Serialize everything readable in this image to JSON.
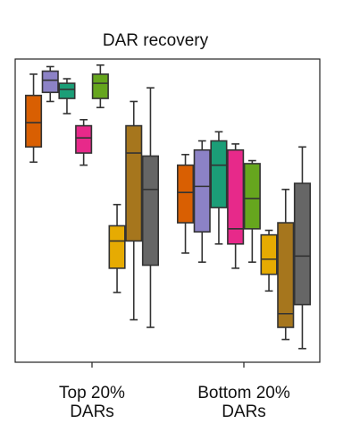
{
  "chart_data": {
    "type": "box",
    "title": "DAR recovery",
    "xlabel": "",
    "ylabel": "",
    "grid": false,
    "categories": [
      {
        "line1": "Top 20%",
        "line2": "DARs"
      },
      {
        "line1": "Bottom 20%",
        "line2": "DARs"
      }
    ],
    "ylim": [
      0,
      10
    ],
    "series": [
      {
        "color": "#d95f02"
      },
      {
        "color": "#8c82c6"
      },
      {
        "color": "#1b9e77"
      },
      {
        "color": "#e7298a"
      },
      {
        "color": "#66a61e"
      },
      {
        "color": "#e6ab02"
      },
      {
        "color": "#a6761d"
      },
      {
        "color": "#666666"
      }
    ],
    "boxes": [
      [
        {
          "whislo": 6.6,
          "q1": 7.1,
          "med": 7.9,
          "q3": 8.8,
          "whishi": 9.5
        },
        {
          "whislo": 8.6,
          "q1": 8.9,
          "med": 9.3,
          "q3": 9.6,
          "whishi": 9.75
        },
        {
          "whislo": 8.2,
          "q1": 8.7,
          "med": 9.0,
          "q3": 9.2,
          "whishi": 9.35
        },
        {
          "whislo": 6.5,
          "q1": 6.9,
          "med": 7.4,
          "q3": 7.8,
          "whishi": 8.0
        },
        {
          "whislo": 8.4,
          "q1": 8.7,
          "med": 9.2,
          "q3": 9.5,
          "whishi": 9.8
        },
        {
          "whislo": 2.3,
          "q1": 3.1,
          "med": 4.0,
          "q3": 4.5,
          "whishi": 5.2
        },
        {
          "whislo": 1.4,
          "q1": 4.0,
          "med": 6.9,
          "q3": 7.8,
          "whishi": 8.6
        },
        {
          "whislo": 1.15,
          "q1": 3.2,
          "med": 5.7,
          "q3": 6.8,
          "whishi": 9.05
        }
      ],
      [
        {
          "whislo": 3.6,
          "q1": 4.6,
          "med": 5.6,
          "q3": 6.5,
          "whishi": 6.85
        },
        {
          "whislo": 3.3,
          "q1": 4.3,
          "med": 5.8,
          "q3": 7.0,
          "whishi": 7.3
        },
        {
          "whislo": 3.9,
          "q1": 5.1,
          "med": 6.5,
          "q3": 7.3,
          "whishi": 7.6
        },
        {
          "whislo": 3.1,
          "q1": 3.9,
          "med": 4.4,
          "q3": 7.0,
          "whishi": 7.2
        },
        {
          "whislo": 3.3,
          "q1": 4.4,
          "med": 5.4,
          "q3": 6.55,
          "whishi": 6.65
        },
        {
          "whislo": 2.35,
          "q1": 2.9,
          "med": 3.4,
          "q3": 4.2,
          "whishi": 4.35
        },
        {
          "whislo": 0.75,
          "q1": 1.15,
          "med": 1.6,
          "q3": 4.6,
          "whishi": 5.7
        },
        {
          "whislo": 0.45,
          "q1": 1.9,
          "med": 3.5,
          "q3": 5.9,
          "whishi": 7.1
        }
      ]
    ]
  }
}
